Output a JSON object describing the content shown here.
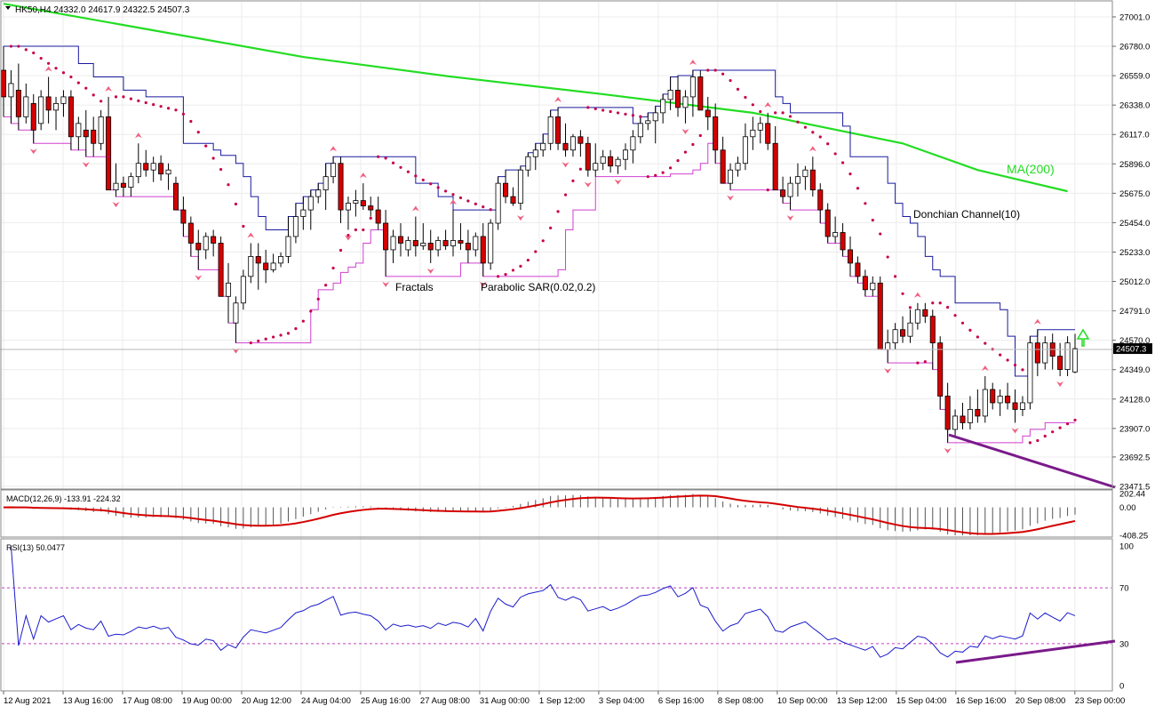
{
  "header": {
    "symbol_line": "HK50,H4  24332.0 24617.9 24322.5 24507.3",
    "macd_label": "MACD(12,26,9) -133.91 -224.32",
    "rsi_label": "RSI(13) 50.0477"
  },
  "annotations": {
    "ma": "MA(200)",
    "donchian": "Donchian Channel(10)",
    "fractals": "Fractals",
    "sar": "Parabolic SAR(0.02,0.2)"
  },
  "colors": {
    "bull": "#ffffff",
    "bear": "#d40000",
    "ma": "#22dd22",
    "donchian_upper": "#1a1aa0",
    "donchian_lower": "#d040d0",
    "sar": "#c8004a",
    "fractal": "#f06080",
    "macd_signal": "#d40000",
    "rsi_line": "#1a1acc",
    "trend": "#7a1a8a",
    "arrow": "#22dd22"
  },
  "chart_data": [
    {
      "type": "candlestick",
      "name": "price",
      "yticks": [
        "27001.0",
        "26780.0",
        "26559.0",
        "26338.0",
        "26117.0",
        "25896.0",
        "25675.0",
        "25454.0",
        "25233.0",
        "25012.0",
        "24791.0",
        "24570.0",
        "24349.0",
        "24128.0",
        "23907.0",
        "23692.5",
        "23471.5"
      ],
      "ylim": [
        23471.5,
        27001.0
      ],
      "last_price": "24507.3",
      "xticks": [
        "12 Aug 2021",
        "13 Aug 16:00",
        "17 Aug 08:00",
        "19 Aug 00:00",
        "20 Aug 12:00",
        "24 Aug 04:00",
        "25 Aug 16:00",
        "27 Aug 08:00",
        "31 Aug 00:00",
        "1 Sep 12:00",
        "3 Sep 04:00",
        "6 Sep 16:00",
        "8 Sep 08:00",
        "10 Sep 00:00",
        "13 Sep 12:00",
        "15 Sep 04:00",
        "16 Sep 16:00",
        "20 Sep 08:00",
        "23 Sep 00:00"
      ],
      "candles": [
        [
          26600,
          26780,
          26250,
          26400
        ],
        [
          26400,
          26600,
          26200,
          26500
        ],
        [
          26450,
          26650,
          26150,
          26250
        ],
        [
          26250,
          26500,
          26200,
          26400
        ],
        [
          26350,
          26420,
          26050,
          26150
        ],
        [
          26200,
          26450,
          26150,
          26400
        ],
        [
          26400,
          26550,
          26200,
          26300
        ],
        [
          26300,
          26400,
          26150,
          26350
        ],
        [
          26350,
          26450,
          26250,
          26400
        ],
        [
          26400,
          26450,
          26000,
          26100
        ],
        [
          26100,
          26250,
          26000,
          26200
        ],
        [
          26150,
          26300,
          25950,
          26100
        ],
        [
          26150,
          26250,
          25950,
          26050
        ],
        [
          26050,
          26300,
          26000,
          26250
        ],
        [
          26250,
          26400,
          25700,
          25700
        ],
        [
          25700,
          25900,
          25650,
          25750
        ],
        [
          25750,
          25800,
          25650,
          25720
        ],
        [
          25720,
          25830,
          25650,
          25800
        ],
        [
          25800,
          26050,
          25750,
          25900
        ],
        [
          25900,
          26000,
          25800,
          25850
        ],
        [
          25850,
          25950,
          25760,
          25900
        ],
        [
          25900,
          25960,
          25770,
          25820
        ],
        [
          25820,
          25900,
          25700,
          25850
        ],
        [
          25750,
          25800,
          25550,
          25550
        ],
        [
          25550,
          25650,
          25350,
          25450
        ],
        [
          25450,
          25500,
          25200,
          25300
        ],
        [
          25300,
          25400,
          25100,
          25250
        ],
        [
          25250,
          25380,
          25180,
          25350
        ],
        [
          25350,
          25400,
          25200,
          25300
        ],
        [
          25300,
          25350,
          24900,
          24900
        ],
        [
          24900,
          25150,
          24700,
          25000
        ],
        [
          24700,
          24900,
          24550,
          24850
        ],
        [
          24850,
          25100,
          24800,
          25050
        ],
        [
          25050,
          25300,
          25000,
          25200
        ],
        [
          25200,
          25300,
          24950,
          25150
        ],
        [
          25150,
          25250,
          25000,
          25100
        ],
        [
          25100,
          25220,
          25080,
          25150
        ],
        [
          25150,
          25230,
          25120,
          25200
        ],
        [
          25200,
          25500,
          25150,
          25350
        ],
        [
          25350,
          25600,
          25300,
          25500
        ],
        [
          25500,
          25650,
          25400,
          25550
        ],
        [
          25550,
          25700,
          25400,
          25650
        ],
        [
          25650,
          25750,
          25600,
          25700
        ],
        [
          25700,
          25900,
          25550,
          25800
        ],
        [
          25800,
          25950,
          25750,
          25900
        ],
        [
          25900,
          25950,
          25450,
          25550
        ],
        [
          25550,
          25650,
          25400,
          25600
        ],
        [
          25600,
          25700,
          25500,
          25620
        ],
        [
          25620,
          25750,
          25550,
          25580
        ],
        [
          25580,
          25650,
          25500,
          25550
        ],
        [
          25550,
          25650,
          25400,
          25450
        ],
        [
          25450,
          25550,
          25050,
          25250
        ],
        [
          25250,
          25400,
          25150,
          25350
        ],
        [
          25350,
          25450,
          25200,
          25300
        ],
        [
          25250,
          25350,
          25200,
          25320
        ],
        [
          25320,
          25500,
          25200,
          25280
        ],
        [
          25280,
          25450,
          25250,
          25300
        ],
        [
          25300,
          25400,
          25150,
          25250
        ],
        [
          25250,
          25350,
          25200,
          25320
        ],
        [
          25320,
          25400,
          25250,
          25280
        ],
        [
          25280,
          25550,
          25200,
          25320
        ],
        [
          25320,
          25450,
          25250,
          25300
        ],
        [
          25300,
          25400,
          25150,
          25250
        ],
        [
          25250,
          25380,
          25200,
          25350
        ],
        [
          25350,
          25450,
          25050,
          25150
        ],
        [
          25150,
          25480,
          25100,
          25450
        ],
        [
          25450,
          25800,
          25400,
          25750
        ],
        [
          25750,
          25850,
          25600,
          25650
        ],
        [
          25650,
          25720,
          25580,
          25600
        ],
        [
          25600,
          25880,
          25550,
          25850
        ],
        [
          25850,
          25980,
          25800,
          25950
        ],
        [
          25950,
          26050,
          25850,
          26000
        ],
        [
          26000,
          26120,
          25950,
          26050
        ],
        [
          26050,
          26300,
          26000,
          26250
        ],
        [
          26250,
          26320,
          26000,
          26050
        ],
        [
          26050,
          26200,
          25950,
          26000
        ],
        [
          26000,
          26120,
          25950,
          26100
        ],
        [
          26100,
          26150,
          25950,
          26050
        ],
        [
          26050,
          26100,
          25800,
          25850
        ],
        [
          25850,
          26050,
          25800,
          25900
        ],
        [
          25900,
          26000,
          25850,
          25950
        ],
        [
          25950,
          26000,
          25830,
          25880
        ],
        [
          25880,
          25950,
          25820,
          25930
        ],
        [
          25930,
          26050,
          25850,
          26000
        ],
        [
          26000,
          26150,
          25900,
          26100
        ],
        [
          26100,
          26250,
          26050,
          26200
        ],
        [
          26200,
          26280,
          26150,
          26220
        ],
        [
          26220,
          26330,
          26050,
          26280
        ],
        [
          26280,
          26420,
          26200,
          26380
        ],
        [
          26380,
          26550,
          26300,
          26450
        ],
        [
          26450,
          26560,
          26250,
          26320
        ],
        [
          26320,
          26450,
          26200,
          26400
        ],
        [
          26400,
          26600,
          26250,
          26550
        ],
        [
          26550,
          26600,
          26300,
          26300
        ],
        [
          26300,
          26400,
          26150,
          26250
        ],
        [
          26250,
          26350,
          25900,
          26000
        ],
        [
          26000,
          26100,
          25750,
          25750
        ],
        [
          25750,
          25900,
          25700,
          25850
        ],
        [
          25850,
          25950,
          25800,
          25900
        ],
        [
          25900,
          26200,
          25850,
          26100
        ],
        [
          26100,
          26250,
          26000,
          26150
        ],
        [
          26150,
          26250,
          26050,
          26200
        ],
        [
          26200,
          26280,
          26000,
          26050
        ],
        [
          26050,
          26180,
          25700,
          25700
        ],
        [
          25700,
          25800,
          25600,
          25650
        ],
        [
          25650,
          25800,
          25550,
          25750
        ],
        [
          25750,
          25900,
          25650,
          25800
        ],
        [
          25800,
          25880,
          25700,
          25850
        ],
        [
          25850,
          25950,
          25650,
          25700
        ],
        [
          25700,
          25750,
          25450,
          25550
        ],
        [
          25550,
          25600,
          25300,
          25350
        ],
        [
          25350,
          25500,
          25300,
          25380
        ],
        [
          25380,
          25450,
          25200,
          25250
        ],
        [
          25250,
          25350,
          25050,
          25150
        ],
        [
          25150,
          25200,
          25000,
          25050
        ],
        [
          25050,
          25100,
          24900,
          24950
        ],
        [
          24950,
          25050,
          24900,
          25000
        ],
        [
          25000,
          25050,
          24500,
          24500
        ],
        [
          24500,
          24650,
          24400,
          24550
        ],
        [
          24550,
          24700,
          24500,
          24650
        ],
        [
          24650,
          24750,
          24550,
          24600
        ],
        [
          24600,
          24800,
          24550,
          24700
        ],
        [
          24700,
          24850,
          24650,
          24800
        ],
        [
          24800,
          24850,
          24700,
          24750
        ],
        [
          24750,
          24800,
          24350,
          24550
        ],
        [
          24550,
          24600,
          24050,
          24150
        ],
        [
          24150,
          24250,
          23800,
          23900
        ],
        [
          23900,
          24050,
          23850,
          24000
        ],
        [
          24000,
          24100,
          23900,
          23950
        ],
        [
          23950,
          24150,
          23900,
          24050
        ],
        [
          24050,
          24200,
          23950,
          24000
        ],
        [
          24000,
          24300,
          23950,
          24200
        ],
        [
          24200,
          24250,
          24050,
          24100
        ],
        [
          24100,
          24200,
          24000,
          24150
        ],
        [
          24150,
          24250,
          24050,
          24100
        ],
        [
          24100,
          24200,
          23950,
          24050
        ],
        [
          24050,
          24150,
          24000,
          24100
        ],
        [
          24100,
          24600,
          24050,
          24550
        ],
        [
          24550,
          24650,
          24300,
          24400
        ],
        [
          24400,
          24600,
          24350,
          24550
        ],
        [
          24550,
          24620,
          24350,
          24450
        ],
        [
          24450,
          24550,
          24300,
          24350
        ],
        [
          24350,
          24600,
          24300,
          24550
        ],
        [
          24332,
          24617.9,
          24322.5,
          24507.3
        ]
      ]
    },
    {
      "type": "line",
      "name": "MA(200)",
      "x_index": [
        0,
        20,
        40,
        60,
        80,
        100,
        120,
        130,
        142
      ],
      "values": [
        27100,
        26900,
        26700,
        26550,
        26420,
        26280,
        26050,
        25850,
        25690
      ]
    },
    {
      "type": "bar",
      "name": "MACD(12,26,9)",
      "yticks": [
        "202.44",
        "0.00",
        "-408.25"
      ],
      "ylim": [
        -408.25,
        202.44
      ]
    },
    {
      "type": "line",
      "name": "RSI(13)",
      "yticks": [
        "100",
        "70",
        "30",
        "0"
      ],
      "ylim": [
        0,
        100
      ],
      "levels": [
        70,
        30
      ],
      "last_value": 50.0477
    }
  ]
}
